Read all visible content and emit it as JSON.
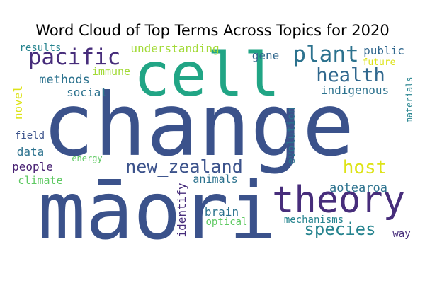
{
  "chart_data": {
    "type": "wordcloud",
    "title": "Word Cloud of Top Terms Across Topics  for 2020",
    "words": [
      {
        "text": "change",
        "weight": 100,
        "color": "#3b528b"
      },
      {
        "text": "māori",
        "weight": 92,
        "color": "#3b528b"
      },
      {
        "text": "cell",
        "weight": 70,
        "color": "#21a585"
      },
      {
        "text": "theory",
        "weight": 42,
        "color": "#472d7b"
      },
      {
        "text": "plant",
        "weight": 28,
        "color": "#2c728e"
      },
      {
        "text": "pacific",
        "weight": 27,
        "color": "#472d7b"
      },
      {
        "text": "health",
        "weight": 24,
        "color": "#31688e"
      },
      {
        "text": "new_zealand",
        "weight": 23,
        "color": "#3b528b"
      },
      {
        "text": "host",
        "weight": 22,
        "color": "#dde318"
      },
      {
        "text": "species",
        "weight": 21,
        "color": "#25838e"
      },
      {
        "text": "indigenous",
        "weight": 15,
        "color": "#2c728e"
      },
      {
        "text": "methods",
        "weight": 15,
        "color": "#2c728e"
      },
      {
        "text": "understanding",
        "weight": 15,
        "color": "#a2da37"
      },
      {
        "text": "aotearoa",
        "weight": 15,
        "color": "#2c728e"
      },
      {
        "text": "social",
        "weight": 14,
        "color": "#2c728e"
      },
      {
        "text": "data",
        "weight": 14,
        "color": "#2c728e"
      },
      {
        "text": "brain",
        "weight": 14,
        "color": "#2c728e"
      },
      {
        "text": "animals",
        "weight": 14,
        "color": "#2c728e"
      },
      {
        "text": "immune",
        "weight": 14,
        "color": "#a2da37"
      },
      {
        "text": "gene",
        "weight": 14,
        "color": "#31688e"
      },
      {
        "text": "public",
        "weight": 14,
        "color": "#31688e"
      },
      {
        "text": "novel",
        "weight": 14,
        "color": "#dde318"
      },
      {
        "text": "people",
        "weight": 13,
        "color": "#482173"
      },
      {
        "text": "climate",
        "weight": 13,
        "color": "#5ec962"
      },
      {
        "text": "identify",
        "weight": 13,
        "color": "#472d7b"
      },
      {
        "text": "evolution",
        "weight": 13,
        "color": "#2c728e"
      },
      {
        "text": "mechanisms",
        "weight": 12,
        "color": "#25838e"
      },
      {
        "text": "optical",
        "weight": 12,
        "color": "#5ec962"
      },
      {
        "text": "results",
        "weight": 12,
        "color": "#25838e"
      },
      {
        "text": "field",
        "weight": 12,
        "color": "#3b528b"
      },
      {
        "text": "future",
        "weight": 11,
        "color": "#dde318"
      },
      {
        "text": "energy",
        "weight": 11,
        "color": "#5ec962"
      },
      {
        "text": "way",
        "weight": 11,
        "color": "#472d7b"
      },
      {
        "text": "materials",
        "weight": 10,
        "color": "#25838e"
      }
    ]
  }
}
